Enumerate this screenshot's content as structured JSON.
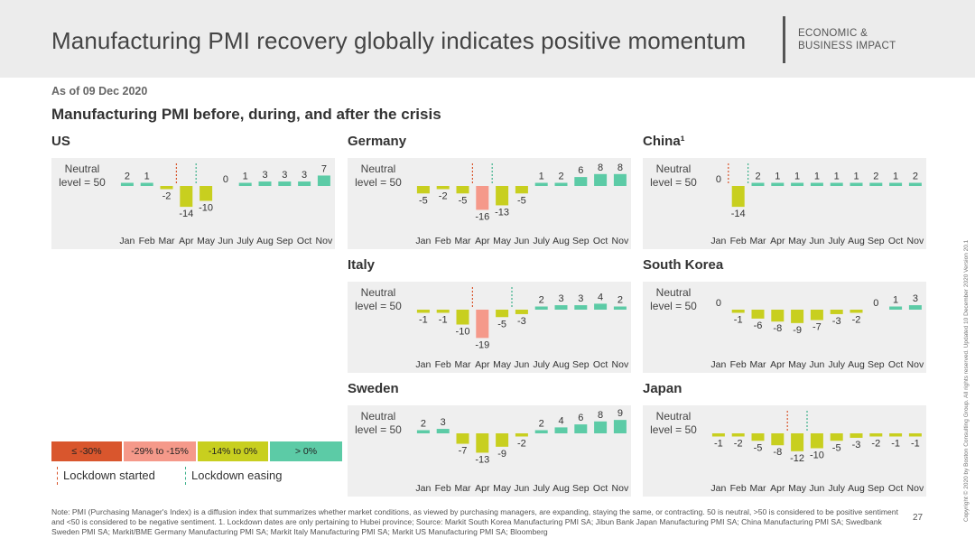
{
  "header": {
    "title": "Manufacturing PMI recovery globally indicates positive momentum",
    "tag_line1": "ECONOMIC &",
    "tag_line2": "BUSINESS IMPACT"
  },
  "as_of": "As of 09 Dec 2020",
  "subtitle": "Manufacturing PMI before, during, and after the crisis",
  "neutral_line1": "Neutral",
  "neutral_line2": "level = 50",
  "colors": {
    "dark_red": "#d9562d",
    "salmon": "#f5998a",
    "yellow_green": "#c8cf1f",
    "teal": "#5ccba6"
  },
  "legend": {
    "boxes": [
      {
        "label": "≤ -30%",
        "color": "#d9562d"
      },
      {
        "label": "-29% to -15%",
        "color": "#f5998a"
      },
      {
        "label": "-14% to 0%",
        "color": "#c8cf1f"
      },
      {
        "label": "> 0%",
        "color": "#5ccba6"
      }
    ],
    "lockdown_started": "Lockdown started",
    "lockdown_easing": "Lockdown easing"
  },
  "chart_data": [
    {
      "type": "bar",
      "country": "US",
      "label": "US",
      "categories": [
        "Jan",
        "Feb",
        "Mar",
        "Apr",
        "May",
        "Jun",
        "July",
        "Aug",
        "Sep",
        "Oct",
        "Nov"
      ],
      "values": [
        2,
        1,
        -2,
        -14,
        -10,
        0,
        1,
        3,
        3,
        3,
        7
      ],
      "value_labels": [
        "2",
        "1",
        "-2",
        "-14",
        "-10",
        "0",
        "1",
        "3",
        "3",
        "3",
        "7"
      ],
      "lockdown_started_after_index": 2,
      "lockdown_easing_after_index": 3
    },
    {
      "type": "bar",
      "country": "Germany",
      "label": "Germany",
      "categories": [
        "Jan",
        "Feb",
        "Mar",
        "Apr",
        "May",
        "Jun",
        "July",
        "Aug",
        "Sep",
        "Oct",
        "Nov"
      ],
      "values": [
        -5,
        -2,
        -5,
        -16,
        -13,
        -5,
        1,
        2,
        6,
        8,
        8
      ],
      "value_labels": [
        "-5",
        "-2",
        "-5",
        "-16",
        "-13",
        "-5",
        "1",
        "2",
        "6",
        "8",
        "8"
      ],
      "lockdown_started_after_index": 2,
      "lockdown_easing_after_index": 3
    },
    {
      "type": "bar",
      "country": "China",
      "label": "China¹",
      "categories": [
        "Jan",
        "Feb",
        "Mar",
        "Apr",
        "May",
        "Jun",
        "July",
        "Aug",
        "Sep",
        "Oct",
        "Nov"
      ],
      "values": [
        0,
        -14,
        2,
        1,
        1,
        1,
        1,
        1,
        2,
        1,
        2
      ],
      "value_labels": [
        "0",
        "-14",
        "2",
        "1",
        "1",
        "1",
        "1",
        "1",
        "2",
        "1",
        "2"
      ],
      "lockdown_started_after_index": 0,
      "lockdown_easing_after_index": 1
    },
    {
      "type": "bar",
      "country": "Italy",
      "label": "Italy",
      "categories": [
        "Jan",
        "Feb",
        "Mar",
        "Apr",
        "May",
        "Jun",
        "July",
        "Aug",
        "Sep",
        "Oct",
        "Nov"
      ],
      "values": [
        -1,
        -1,
        -10,
        -19,
        -5,
        -3,
        2,
        3,
        3,
        4,
        2
      ],
      "value_labels": [
        "-1",
        "-1",
        "-10",
        "-19",
        "-5",
        "-3",
        "2",
        "3",
        "3",
        "4",
        "2"
      ],
      "lockdown_started_after_index": 2,
      "lockdown_easing_after_index": 4
    },
    {
      "type": "bar",
      "country": "South Korea",
      "label": "South Korea",
      "categories": [
        "Jan",
        "Feb",
        "Mar",
        "Apr",
        "May",
        "Jun",
        "July",
        "Aug",
        "Sep",
        "Oct",
        "Nov"
      ],
      "values": [
        0,
        -1,
        -6,
        -8,
        -9,
        -7,
        -3,
        -2,
        0,
        1,
        3
      ],
      "value_labels": [
        "0",
        "-1",
        "-6",
        "-8",
        "-9",
        "-7",
        "-3",
        "-2",
        "0",
        "1",
        "3"
      ]
    },
    {
      "type": "bar",
      "country": "Sweden",
      "label": "Sweden",
      "categories": [
        "Jan",
        "Feb",
        "Mar",
        "Apr",
        "May",
        "Jun",
        "July",
        "Aug",
        "Sep",
        "Oct",
        "Nov"
      ],
      "values": [
        2,
        3,
        -7,
        -13,
        -9,
        -2,
        2,
        4,
        6,
        8,
        9
      ],
      "value_labels": [
        "2",
        "3",
        "-7",
        "-13",
        "-9",
        "-2",
        "2",
        "4",
        "6",
        "8",
        "9"
      ]
    },
    {
      "type": "bar",
      "country": "Japan",
      "label": "Japan",
      "categories": [
        "Jan",
        "Feb",
        "Mar",
        "Apr",
        "May",
        "Jun",
        "July",
        "Aug",
        "Sep",
        "Oct",
        "Nov"
      ],
      "values": [
        -1,
        -2,
        -5,
        -8,
        -12,
        -10,
        -5,
        -3,
        -2,
        -1,
        -1
      ],
      "value_labels": [
        "-1",
        "-2",
        "-5",
        "-8",
        "-12",
        "-10",
        "-5",
        "-3",
        "-2",
        "-1",
        "-1"
      ],
      "lockdown_started_after_index": 3,
      "lockdown_easing_after_index": 4
    }
  ],
  "note": "Note: PMI (Purchasing Manager's Index) is a diffusion index that summarizes whether market conditions, as viewed by purchasing managers, are expanding, staying the same, or contracting. 50 is neutral, >50 is considered to be positive sentiment and <50 is considered to be negative sentiment. 1. Lockdown dates are only pertaining to Hubei province;  Source: Markit South Korea Manufacturing PMI SA; Jibun Bank Japan Manufacturing PMI SA; China Manufacturing PMI SA; Swedbank Sweden PMI SA; Markit/BME Germany Manufacturing PMI SA; Markit Italy Manufacturing PMI SA; Markit US Manufacturing PMI SA; Bloomberg",
  "page_number": "27",
  "copyright": "Copyright © 2020 by Boston Consulting Group. All rights reserved. Updated 10 December 2020 Version 20.1"
}
